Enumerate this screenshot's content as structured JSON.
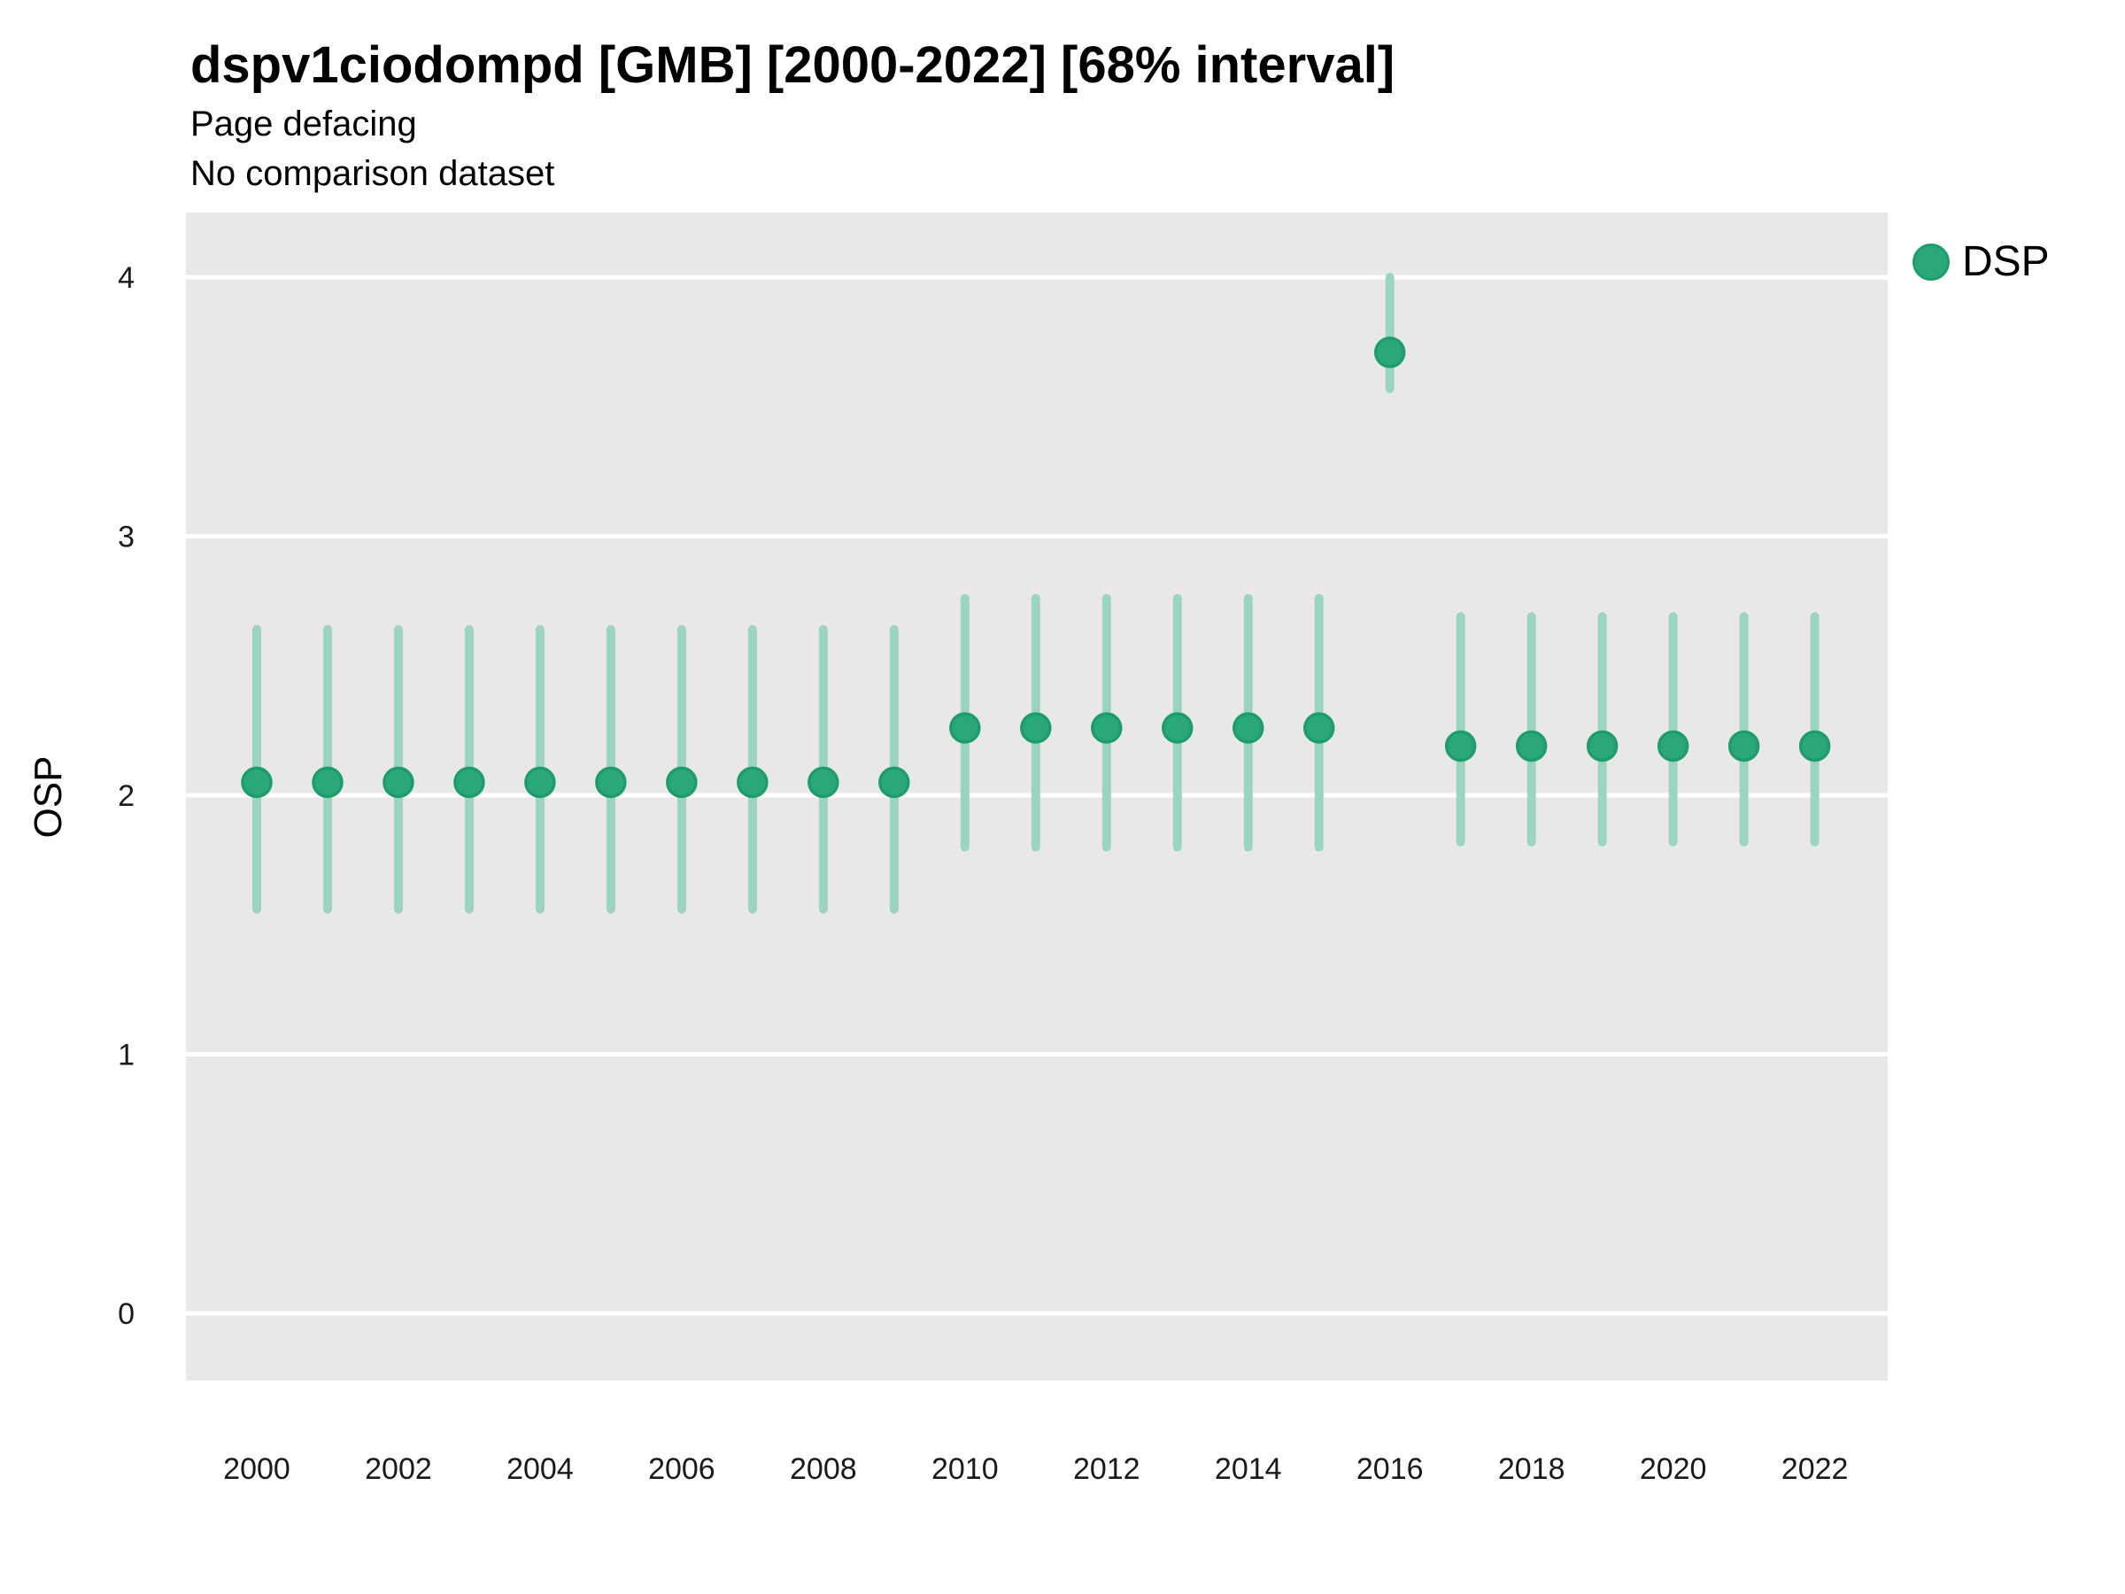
{
  "header": {
    "title": "dspv1ciodompd [GMB] [2000-2022] [68% interval]",
    "subtitle1": "Page defacing",
    "subtitle2": "No comparison dataset"
  },
  "axes": {
    "ylabel": "OSP",
    "x_tick_labels": [
      "2000",
      "2002",
      "2004",
      "2006",
      "2008",
      "2010",
      "2012",
      "2014",
      "2016",
      "2018",
      "2020",
      "2022"
    ],
    "y_tick_labels": [
      "0",
      "1",
      "2",
      "3",
      "4"
    ]
  },
  "legend": {
    "label": "DSP"
  },
  "colors": {
    "point_fill": "#2aa87a",
    "point_stroke": "#1f9c6c",
    "interval": "#9dd4bd",
    "panel_bg": "#e8e8e8",
    "grid": "#ffffff",
    "tick_text": "#1a1a1a"
  },
  "chart_data": {
    "type": "scatter",
    "title": "dspv1ciodompd [GMB] [2000-2022] [68% interval]",
    "subtitle": [
      "Page defacing",
      "No comparison dataset"
    ],
    "xlabel": "",
    "ylabel": "OSP",
    "interval_label": "68% interval",
    "legend_position": "right",
    "grid": "horizontal-only",
    "xlim": [
      1999,
      2023.03
    ],
    "ylim": [
      -0.26,
      4.25
    ],
    "x_ticks": [
      2000,
      2002,
      2004,
      2006,
      2008,
      2010,
      2012,
      2014,
      2016,
      2018,
      2020,
      2022
    ],
    "y_ticks": [
      0,
      1,
      2,
      3,
      4
    ],
    "series": [
      {
        "name": "DSP",
        "points": [
          {
            "x": 2000,
            "y": 2.05,
            "lo": 1.56,
            "hi": 2.64
          },
          {
            "x": 2001,
            "y": 2.05,
            "lo": 1.56,
            "hi": 2.64
          },
          {
            "x": 2002,
            "y": 2.05,
            "lo": 1.56,
            "hi": 2.64
          },
          {
            "x": 2003,
            "y": 2.05,
            "lo": 1.56,
            "hi": 2.64
          },
          {
            "x": 2004,
            "y": 2.05,
            "lo": 1.56,
            "hi": 2.64
          },
          {
            "x": 2005,
            "y": 2.05,
            "lo": 1.56,
            "hi": 2.64
          },
          {
            "x": 2006,
            "y": 2.05,
            "lo": 1.56,
            "hi": 2.64
          },
          {
            "x": 2007,
            "y": 2.05,
            "lo": 1.56,
            "hi": 2.64
          },
          {
            "x": 2008,
            "y": 2.05,
            "lo": 1.56,
            "hi": 2.64
          },
          {
            "x": 2009,
            "y": 2.05,
            "lo": 1.56,
            "hi": 2.64
          },
          {
            "x": 2010,
            "y": 2.26,
            "lo": 1.8,
            "hi": 2.76
          },
          {
            "x": 2011,
            "y": 2.26,
            "lo": 1.8,
            "hi": 2.76
          },
          {
            "x": 2012,
            "y": 2.26,
            "lo": 1.8,
            "hi": 2.76
          },
          {
            "x": 2013,
            "y": 2.26,
            "lo": 1.8,
            "hi": 2.76
          },
          {
            "x": 2014,
            "y": 2.26,
            "lo": 1.8,
            "hi": 2.76
          },
          {
            "x": 2015,
            "y": 2.26,
            "lo": 1.8,
            "hi": 2.76
          },
          {
            "x": 2016,
            "y": 3.71,
            "lo": 3.57,
            "hi": 4.0
          },
          {
            "x": 2017,
            "y": 2.19,
            "lo": 1.82,
            "hi": 2.69
          },
          {
            "x": 2018,
            "y": 2.19,
            "lo": 1.82,
            "hi": 2.69
          },
          {
            "x": 2019,
            "y": 2.19,
            "lo": 1.82,
            "hi": 2.69
          },
          {
            "x": 2020,
            "y": 2.19,
            "lo": 1.82,
            "hi": 2.69
          },
          {
            "x": 2021,
            "y": 2.19,
            "lo": 1.82,
            "hi": 2.69
          },
          {
            "x": 2022,
            "y": 2.19,
            "lo": 1.82,
            "hi": 2.69
          }
        ]
      }
    ]
  }
}
